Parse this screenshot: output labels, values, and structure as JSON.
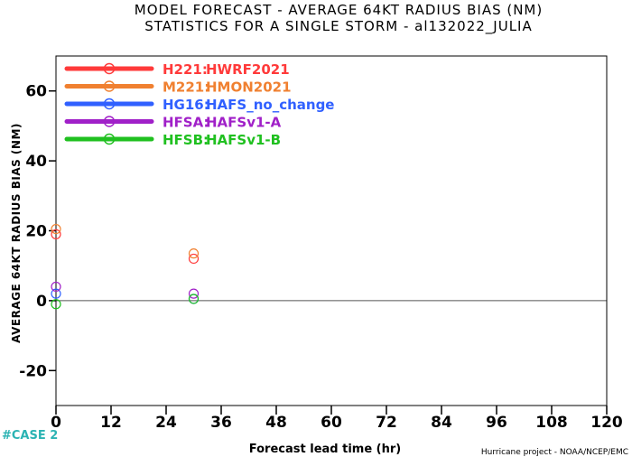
{
  "chart_data": {
    "type": "scatter",
    "title": "MODEL FORECAST - AVERAGE 64KT RADIUS BIAS (NM)",
    "subtitle": "STATISTICS FOR A SINGLE STORM - al132022_JULIA",
    "xlabel": "Forecast lead time (hr)",
    "ylabel": "AVERAGE 64KT RADIUS BIAS (NM)",
    "xlim": [
      0,
      120
    ],
    "ylim": [
      -30,
      70
    ],
    "xticks": [
      0,
      12,
      24,
      36,
      48,
      60,
      72,
      84,
      96,
      108,
      120
    ],
    "yticks": [
      -20,
      0,
      20,
      40,
      60
    ],
    "zero_line": true,
    "legend_position": "top-left",
    "series": [
      {
        "name": "H221:",
        "label": "HWRF2021",
        "color": "#ff3a3a",
        "x": [
          0,
          30
        ],
        "y": [
          19,
          12
        ]
      },
      {
        "name": "M221:",
        "label": "HMON2021",
        "color": "#f08030",
        "x": [
          0,
          30
        ],
        "y": [
          20.5,
          13.5
        ]
      },
      {
        "name": "HG16:",
        "label": "HAFS_no_change",
        "color": "#3060ff",
        "x": [
          0,
          30
        ],
        "y": [
          2,
          0.5
        ]
      },
      {
        "name": "HFSA:",
        "label": "HAFSv1-A",
        "color": "#a020c8",
        "x": [
          0,
          30
        ],
        "y": [
          4,
          2
        ]
      },
      {
        "name": "HFSB:",
        "label": "HAFSv1-B",
        "color": "#20c020",
        "x": [
          0,
          30
        ],
        "y": [
          -1,
          0.5
        ]
      }
    ]
  },
  "footer": {
    "case_label": "#CASE  2",
    "credit": "Hurricane project - NOAA/NCEP/EMC"
  }
}
